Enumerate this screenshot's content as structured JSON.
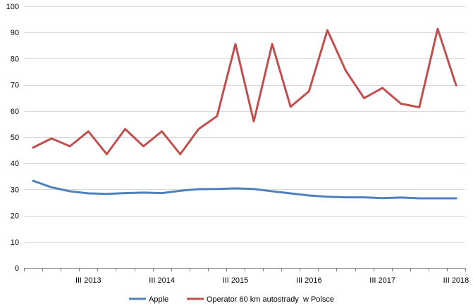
{
  "chart_data": {
    "type": "line",
    "ylim": [
      0,
      100
    ],
    "yticks": [
      0,
      10,
      20,
      30,
      40,
      50,
      60,
      70,
      80,
      90,
      100
    ],
    "grid": true,
    "legend_position": "bottom",
    "x_tick_labels": [
      {
        "index": 3,
        "label": "III 2013"
      },
      {
        "index": 7,
        "label": "III 2014"
      },
      {
        "index": 11,
        "label": "III 2015"
      },
      {
        "index": 15,
        "label": "III 2016"
      },
      {
        "index": 19,
        "label": "III 2017"
      },
      {
        "index": 23,
        "label": "III 2018"
      }
    ],
    "point_count": 24,
    "series": [
      {
        "name": "Apple",
        "color": "#4f81bd",
        "values": [
          33.3,
          30.8,
          29.3,
          28.5,
          28.3,
          28.6,
          28.8,
          28.6,
          29.5,
          30.1,
          30.2,
          30.4,
          30.2,
          29.3,
          28.5,
          27.7,
          27.2,
          27.0,
          27.0,
          26.7,
          26.9,
          26.6,
          26.6,
          26.6
        ]
      },
      {
        "name": "Operator 60 km autostrady  w Polsce",
        "color": "#c0504d",
        "values": [
          46.0,
          49.5,
          46.5,
          52.2,
          43.5,
          53.1,
          46.5,
          52.2,
          43.5,
          53.1,
          58.0,
          85.6,
          56.0,
          85.6,
          61.6,
          67.5,
          90.9,
          75.4,
          64.9,
          68.8,
          62.8,
          61.4,
          91.4,
          69.8
        ]
      }
    ]
  }
}
